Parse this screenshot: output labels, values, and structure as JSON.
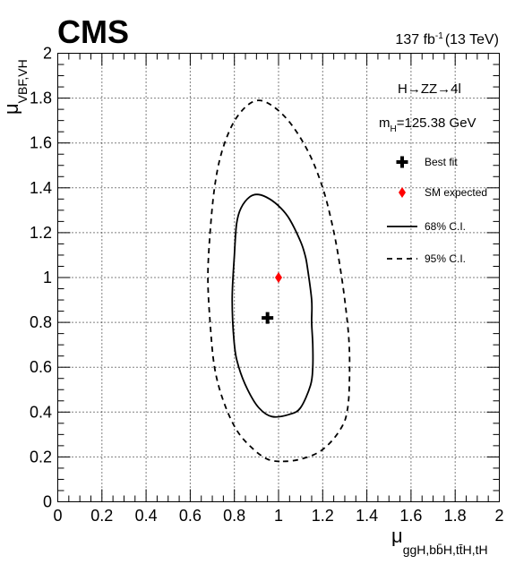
{
  "chart_data": {
    "type": "scatter",
    "experiment": "CMS",
    "luminosity": {
      "value": "137 fb",
      "exponent": "-1",
      "energy": "(13 TeV)"
    },
    "process_label": "H→ZZ→4l",
    "mass_label": {
      "prefix": "m",
      "sub": "H",
      "value": "=125.38 GeV"
    },
    "xlabel": {
      "main": "μ",
      "sub": "ggH,bb̄H,tt̄H,tH"
    },
    "ylabel": {
      "main": "μ",
      "sub": "VBF,VH"
    },
    "xlim": [
      0,
      2
    ],
    "ylim": [
      0,
      2
    ],
    "x_ticks": [
      "0",
      "0.2",
      "0.4",
      "0.6",
      "0.8",
      "1",
      "1.2",
      "1.4",
      "1.6",
      "1.8",
      "2"
    ],
    "y_ticks": [
      "0",
      "0.2",
      "0.4",
      "0.6",
      "0.8",
      "1",
      "1.2",
      "1.4",
      "1.6",
      "1.8",
      "2"
    ],
    "grid": true,
    "legend_position": "top-right",
    "legend": [
      "Best fit",
      "SM expected",
      "68% C.I.",
      "95% C.I."
    ],
    "best_fit": {
      "x": 0.95,
      "y": 0.82
    },
    "sm_expected": {
      "x": 1.0,
      "y": 1.0
    },
    "contour_68": [
      [
        0.97,
        0.38
      ],
      [
        1.05,
        0.39
      ],
      [
        1.1,
        0.42
      ],
      [
        1.145,
        0.52
      ],
      [
        1.155,
        0.6
      ],
      [
        1.155,
        0.7
      ],
      [
        1.15,
        0.8
      ],
      [
        1.15,
        0.9
      ],
      [
        1.13,
        1.05
      ],
      [
        1.12,
        1.1
      ],
      [
        1.1,
        1.16
      ],
      [
        1.05,
        1.26
      ],
      [
        1.01,
        1.31
      ],
      [
        0.96,
        1.35
      ],
      [
        0.91,
        1.37
      ],
      [
        0.87,
        1.36
      ],
      [
        0.83,
        1.31
      ],
      [
        0.81,
        1.24
      ],
      [
        0.8,
        1.1
      ],
      [
        0.79,
        0.9
      ],
      [
        0.8,
        0.7
      ],
      [
        0.82,
        0.6
      ],
      [
        0.86,
        0.5
      ],
      [
        0.91,
        0.42
      ],
      [
        0.97,
        0.38
      ]
    ],
    "contour_95": [
      [
        1.02,
        0.18
      ],
      [
        1.1,
        0.19
      ],
      [
        1.18,
        0.22
      ],
      [
        1.24,
        0.27
      ],
      [
        1.29,
        0.34
      ],
      [
        1.31,
        0.4
      ],
      [
        1.32,
        0.5
      ],
      [
        1.32,
        0.7
      ],
      [
        1.3,
        0.9
      ],
      [
        1.27,
        1.1
      ],
      [
        1.24,
        1.25
      ],
      [
        1.2,
        1.4
      ],
      [
        1.14,
        1.55
      ],
      [
        1.06,
        1.68
      ],
      [
        0.98,
        1.76
      ],
      [
        0.91,
        1.79
      ],
      [
        0.85,
        1.76
      ],
      [
        0.79,
        1.68
      ],
      [
        0.74,
        1.55
      ],
      [
        0.71,
        1.4
      ],
      [
        0.69,
        1.2
      ],
      [
        0.68,
        1.0
      ],
      [
        0.69,
        0.8
      ],
      [
        0.71,
        0.6
      ],
      [
        0.75,
        0.45
      ],
      [
        0.81,
        0.32
      ],
      [
        0.88,
        0.24
      ],
      [
        0.95,
        0.19
      ],
      [
        1.02,
        0.18
      ]
    ]
  }
}
